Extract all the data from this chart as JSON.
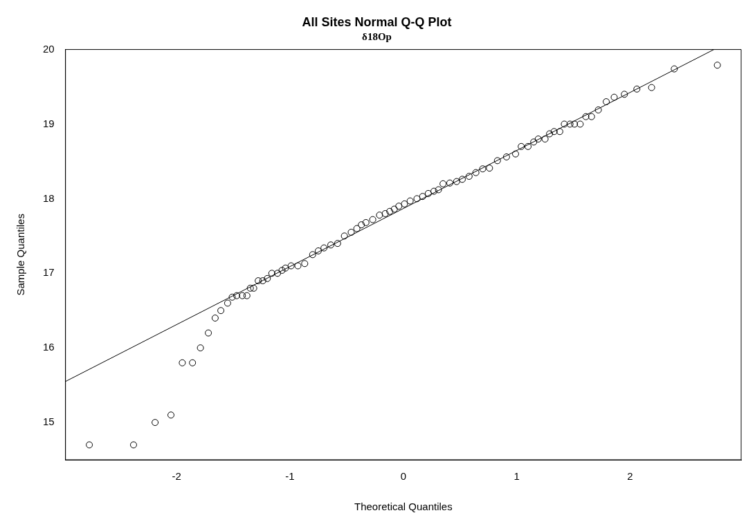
{
  "chart_data": {
    "type": "scatter",
    "title": "All Sites Normal Q-Q Plot",
    "subtitle": "δ18Op",
    "xlabel": "Theoretical Quantiles",
    "ylabel": "Sample Quantiles",
    "xlim": [
      -2.98,
      2.98
    ],
    "ylim": [
      14.5,
      20.0
    ],
    "xticks": [
      -2,
      -1,
      0,
      1,
      2
    ],
    "yticks": [
      15,
      16,
      17,
      18,
      19,
      20
    ],
    "grid": false,
    "legend": false,
    "series": [
      {
        "color": "#000000",
        "marker": "circle",
        "x": [
          -2.77,
          -2.38,
          -2.19,
          -2.05,
          -1.95,
          -1.86,
          -1.79,
          -1.72,
          -1.66,
          -1.61,
          -1.55,
          -1.51,
          -1.47,
          -1.42,
          -1.38,
          -1.35,
          -1.32,
          -1.28,
          -1.24,
          -1.2,
          -1.16,
          -1.11,
          -1.07,
          -1.04,
          -0.99,
          -0.93,
          -0.87,
          -0.8,
          -0.75,
          -0.7,
          -0.64,
          -0.58,
          -0.52,
          -0.46,
          -0.41,
          -0.37,
          -0.33,
          -0.27,
          -0.21,
          -0.16,
          -0.12,
          -0.08,
          -0.04,
          0.01,
          0.06,
          0.12,
          0.17,
          0.22,
          0.27,
          0.31,
          0.35,
          0.41,
          0.47,
          0.52,
          0.58,
          0.64,
          0.7,
          0.76,
          0.83,
          0.91,
          0.99,
          1.04,
          1.1,
          1.15,
          1.19,
          1.25,
          1.29,
          1.33,
          1.38,
          1.42,
          1.47,
          1.51,
          1.56,
          1.61,
          1.66,
          1.72,
          1.79,
          1.86,
          1.95,
          2.06,
          2.19,
          2.39,
          2.77
        ],
        "values": [
          14.7,
          14.7,
          15.0,
          15.1,
          15.8,
          15.8,
          16.0,
          16.2,
          16.4,
          16.5,
          16.6,
          16.68,
          16.7,
          16.7,
          16.7,
          16.8,
          16.8,
          16.9,
          16.9,
          16.93,
          17.0,
          17.0,
          17.04,
          17.07,
          17.1,
          17.1,
          17.13,
          17.25,
          17.3,
          17.34,
          17.38,
          17.4,
          17.5,
          17.55,
          17.6,
          17.65,
          17.68,
          17.72,
          17.78,
          17.8,
          17.83,
          17.86,
          17.9,
          17.93,
          17.97,
          18.0,
          18.03,
          18.07,
          18.1,
          18.12,
          18.2,
          18.21,
          18.23,
          18.26,
          18.3,
          18.35,
          18.4,
          18.41,
          18.51,
          18.56,
          18.6,
          18.7,
          18.7,
          18.76,
          18.8,
          18.8,
          18.87,
          18.9,
          18.9,
          19.0,
          19.0,
          19.0,
          19.0,
          19.1,
          19.1,
          19.19,
          19.3,
          19.36,
          19.4,
          19.47,
          19.49,
          19.74,
          19.79
        ]
      },
      {
        "type": "line",
        "color": "#000000",
        "marker": "none",
        "x": [
          -2.98,
          2.74
        ],
        "values": [
          15.55,
          20.0
        ]
      }
    ]
  }
}
